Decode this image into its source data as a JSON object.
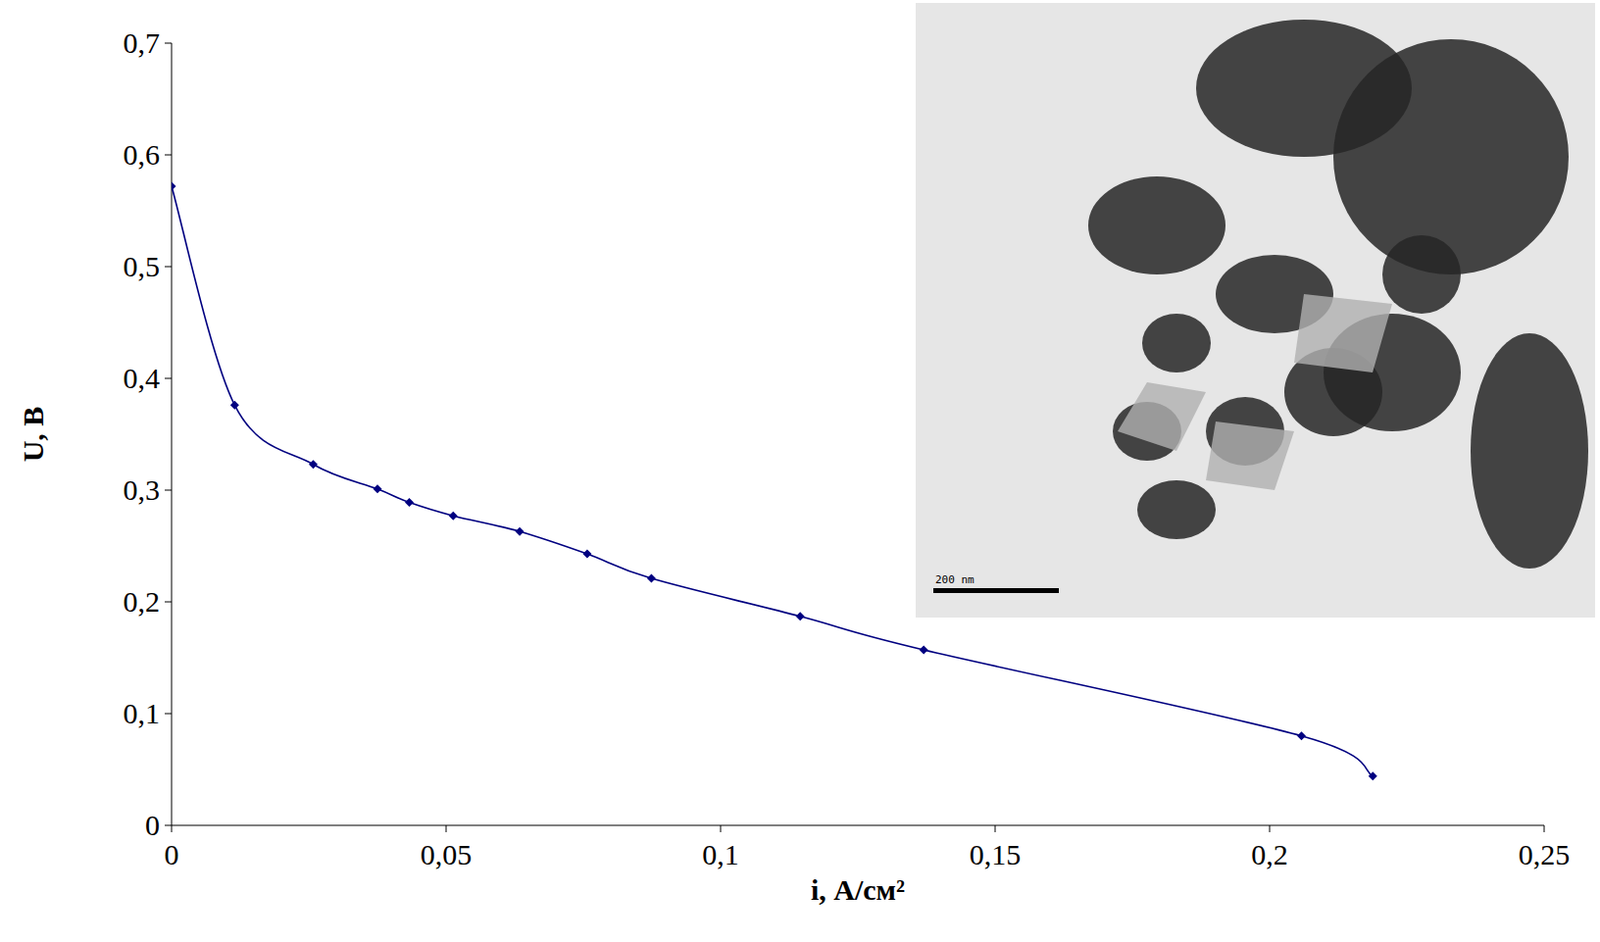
{
  "chart_data": {
    "type": "line",
    "title": "",
    "x_label": "i, А/см²",
    "y_label": "U, В",
    "annotations": [
      "200 nm"
    ],
    "x": [
      0,
      0.0115,
      0.0258,
      0.0375,
      0.0433,
      0.0513,
      0.0634,
      0.0757,
      0.0874,
      0.1145,
      0.137,
      0.2058,
      0.2188
    ],
    "series": [
      {
        "name": "U",
        "color": "#000080",
        "marker": "diamond",
        "line_style": "solid",
        "values": [
          0.572,
          0.376,
          0.323,
          0.301,
          0.289,
          0.277,
          0.263,
          0.243,
          0.221,
          0.187,
          0.157,
          0.08,
          0.044
        ]
      }
    ],
    "xlim": [
      0,
      0.25
    ],
    "xticks": [
      0,
      {
        "value": 0.05,
        "label": "0,05"
      },
      {
        "value": 0.1,
        "label": "0,1"
      },
      {
        "value": 0.15,
        "label": "0,15"
      },
      {
        "value": 0.2,
        "label": "0,2"
      },
      {
        "value": 0.25,
        "label": "0,25"
      }
    ],
    "ylim": [
      0,
      0.7
    ],
    "yticks": [
      0,
      {
        "value": 0.1,
        "label": "0,1"
      },
      {
        "value": 0.2,
        "label": "0,2"
      },
      {
        "value": 0.3,
        "label": "0,3"
      },
      {
        "value": 0.4,
        "label": "0,4"
      },
      {
        "value": 0.5,
        "label": "0,5"
      },
      {
        "value": 0.6,
        "label": "0,6"
      },
      {
        "value": 0.7,
        "label": "0,7"
      }
    ],
    "grid": false
  }
}
